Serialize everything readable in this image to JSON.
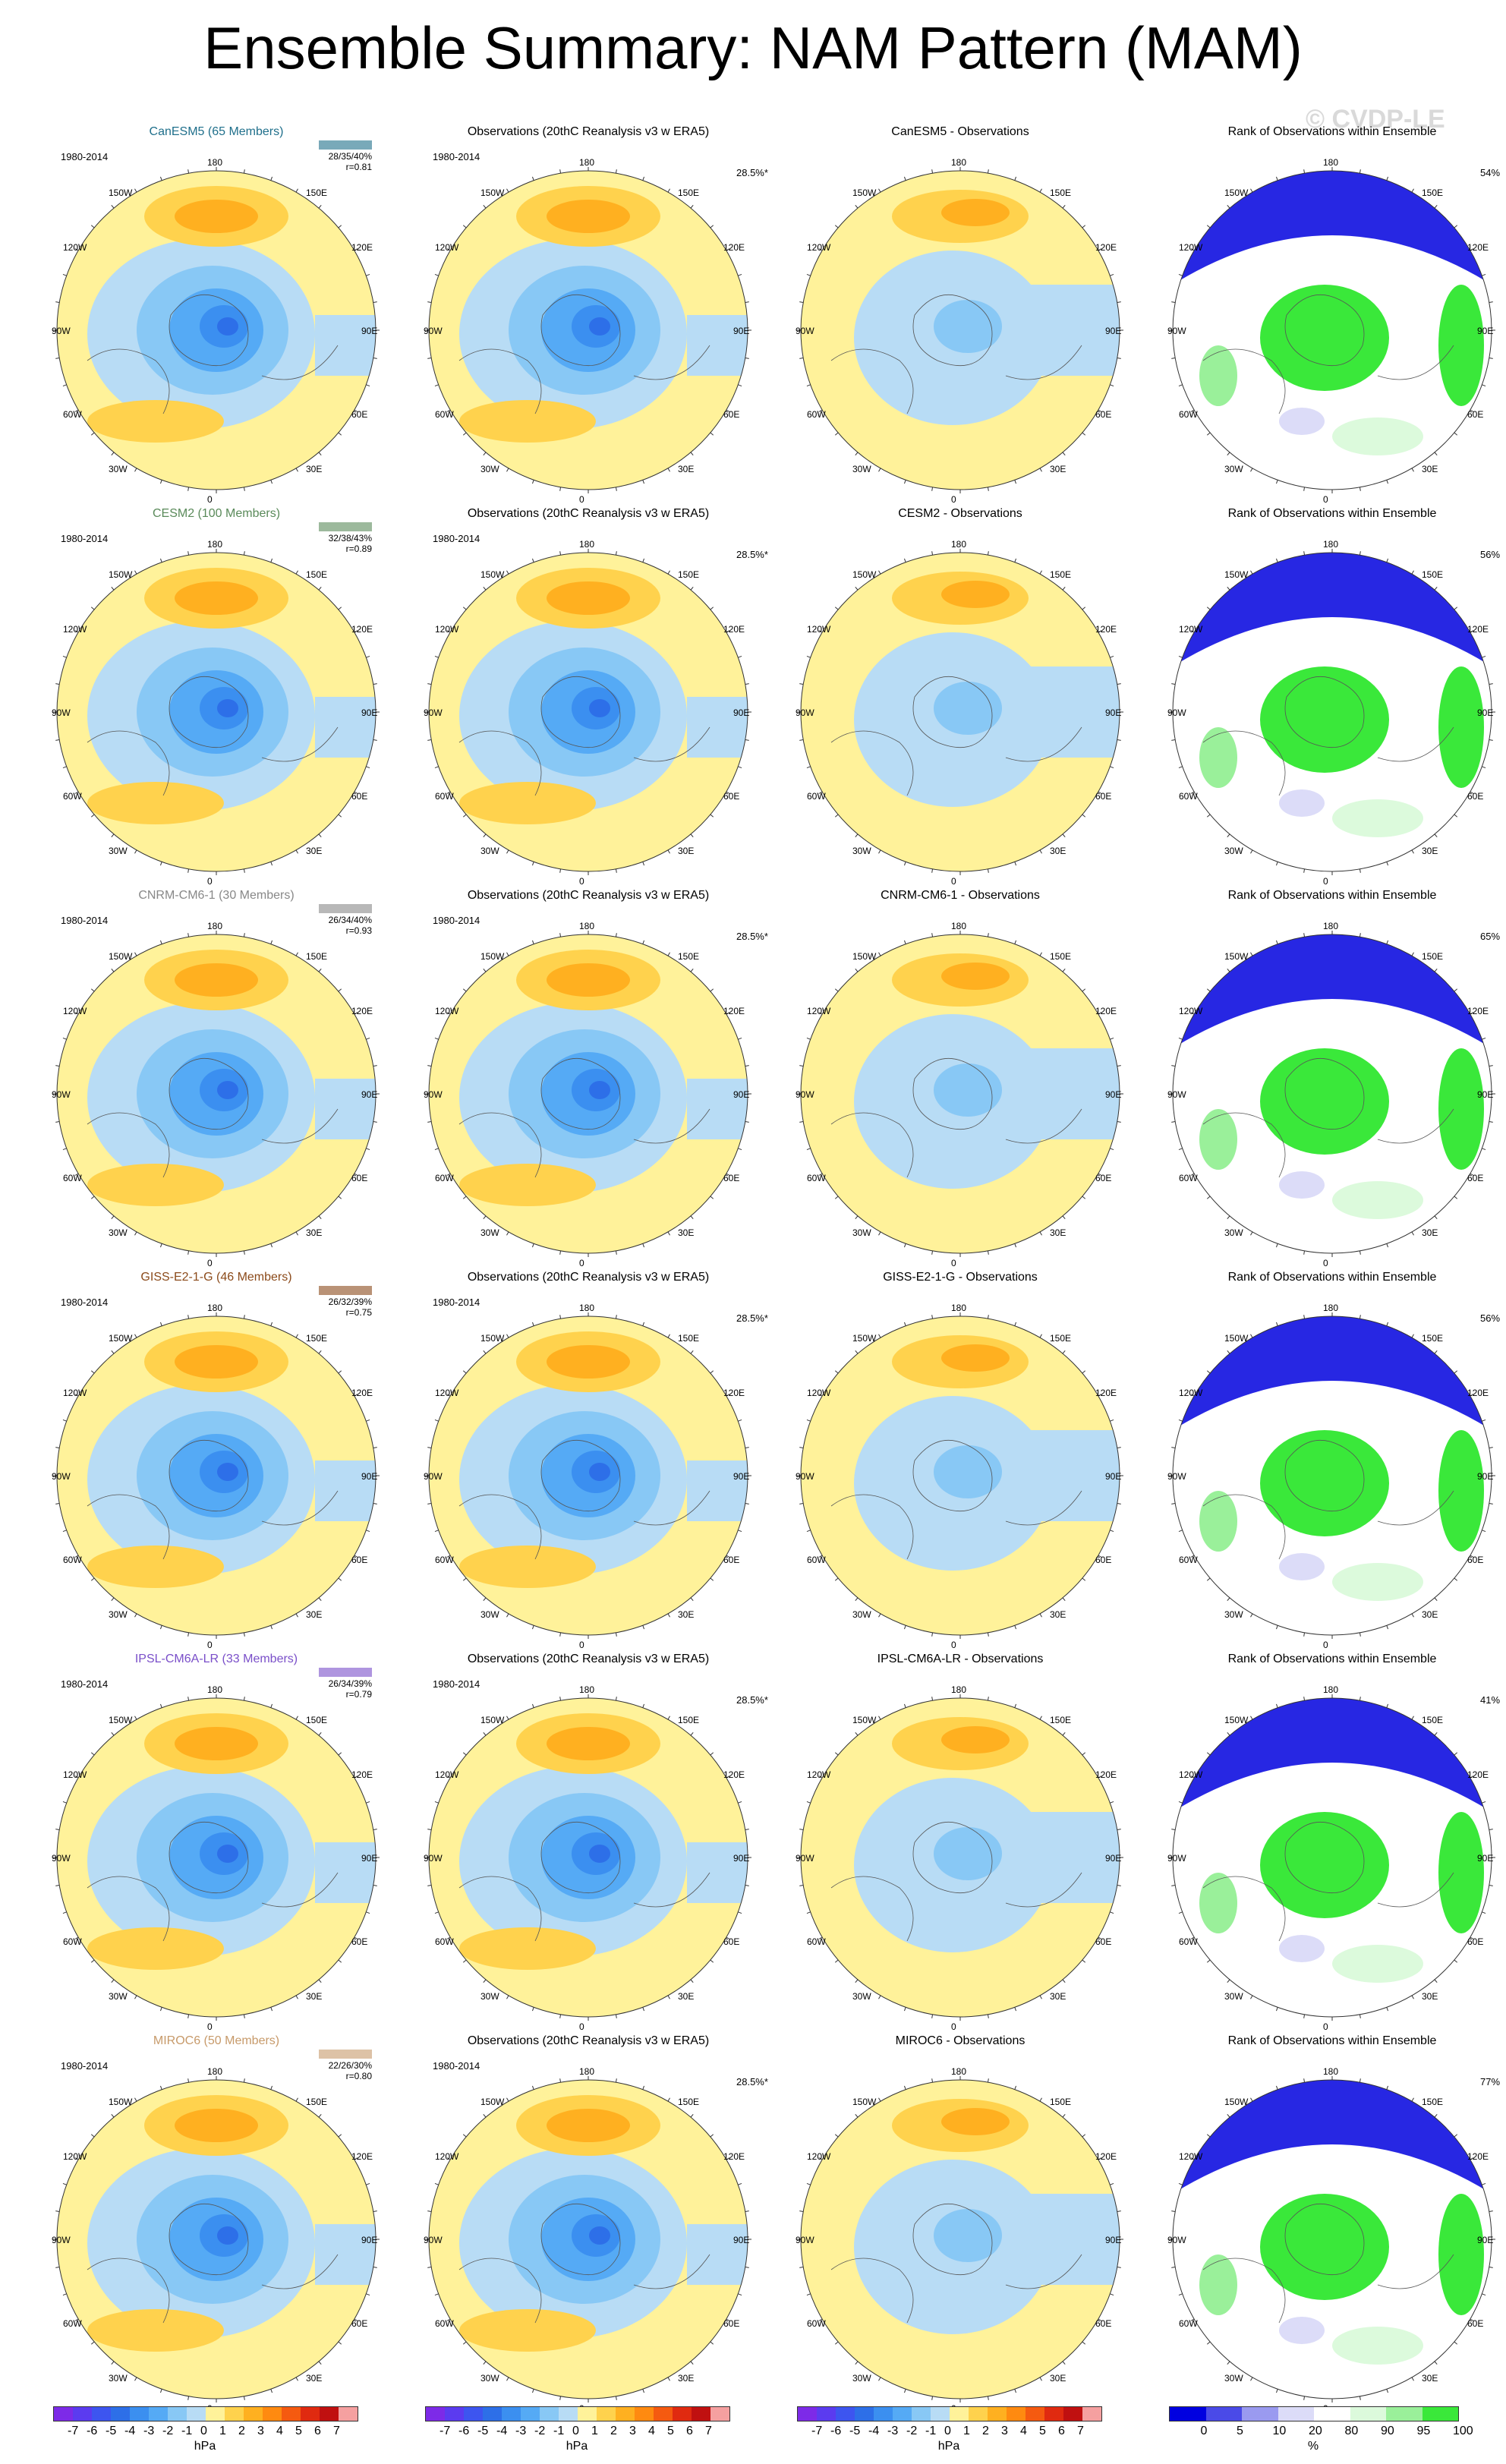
{
  "title": "Ensemble Summary: NAM Pattern (MAM)",
  "watermark": "© CVDP-LE",
  "period": "1980-2014",
  "obs_title": "Observations (20thC Reanalysis v3 w ERA5)",
  "obs_pct": "28.5%*",
  "rank_title": "Rank of Observations within Ensemble",
  "lon_labels": [
    "180",
    "150W",
    "150E",
    "120W",
    "120E",
    "90W",
    "90E",
    "60W",
    "60E",
    "30W",
    "30E",
    "0"
  ],
  "models": [
    {
      "name": "CanESM5 (65 Members)",
      "short": "CanESM5",
      "color": "#1f6f8b",
      "stats": "28/35/40%",
      "r": "r=0.81",
      "rank_pct": "54%"
    },
    {
      "name": "CESM2 (100 Members)",
      "short": "CESM2",
      "color": "#5a8a5a",
      "stats": "32/38/43%",
      "r": "r=0.89",
      "rank_pct": "56%"
    },
    {
      "name": "CNRM-CM6-1 (30 Members)",
      "short": "CNRM-CM6-1",
      "color": "#888888",
      "stats": "26/34/40%",
      "r": "r=0.93",
      "rank_pct": "65%"
    },
    {
      "name": "GISS-E2-1-G (46 Members)",
      "short": "GISS-E2-1-G",
      "color": "#8b4a1a",
      "stats": "26/32/39%",
      "r": "r=0.75",
      "rank_pct": "56%"
    },
    {
      "name": "IPSL-CM6A-LR (33 Members)",
      "short": "IPSL-CM6A-LR",
      "color": "#7a4fc9",
      "stats": "26/34/39%",
      "r": "r=0.79",
      "rank_pct": "41%"
    },
    {
      "name": "MIROC6 (50 Members)",
      "short": "MIROC6",
      "color": "#c79a6a",
      "stats": "22/26/30%",
      "r": "r=0.80",
      "rank_pct": "77%"
    }
  ],
  "diff_suffix": " - Observations",
  "colorbar": {
    "ticks": [
      "-7",
      "-6",
      "-5",
      "-4",
      "-3",
      "-2",
      "-1",
      "0",
      "1",
      "2",
      "3",
      "4",
      "5",
      "6",
      "7"
    ],
    "unit": "hPa",
    "colors": [
      "#7d2ae8",
      "#5b3bf0",
      "#3d55f0",
      "#2d6fe8",
      "#3b8ff0",
      "#55aaf5",
      "#88c8f5",
      "#b8dcf5",
      "#fff29a",
      "#ffd24d",
      "#ffb020",
      "#ff8a10",
      "#f55a10",
      "#e02a10",
      "#c01010",
      "#f5a0a0"
    ]
  },
  "rank_colorbar": {
    "ticks": [
      "0",
      "5",
      "10",
      "20",
      "80",
      "90",
      "95",
      "100"
    ],
    "unit": "%",
    "colors": [
      "#0000e0",
      "#4a4ae8",
      "#9a9af0",
      "#dcdcf8",
      "#ffffff",
      "#dcfadc",
      "#9af09a",
      "#3ae83a"
    ]
  }
}
